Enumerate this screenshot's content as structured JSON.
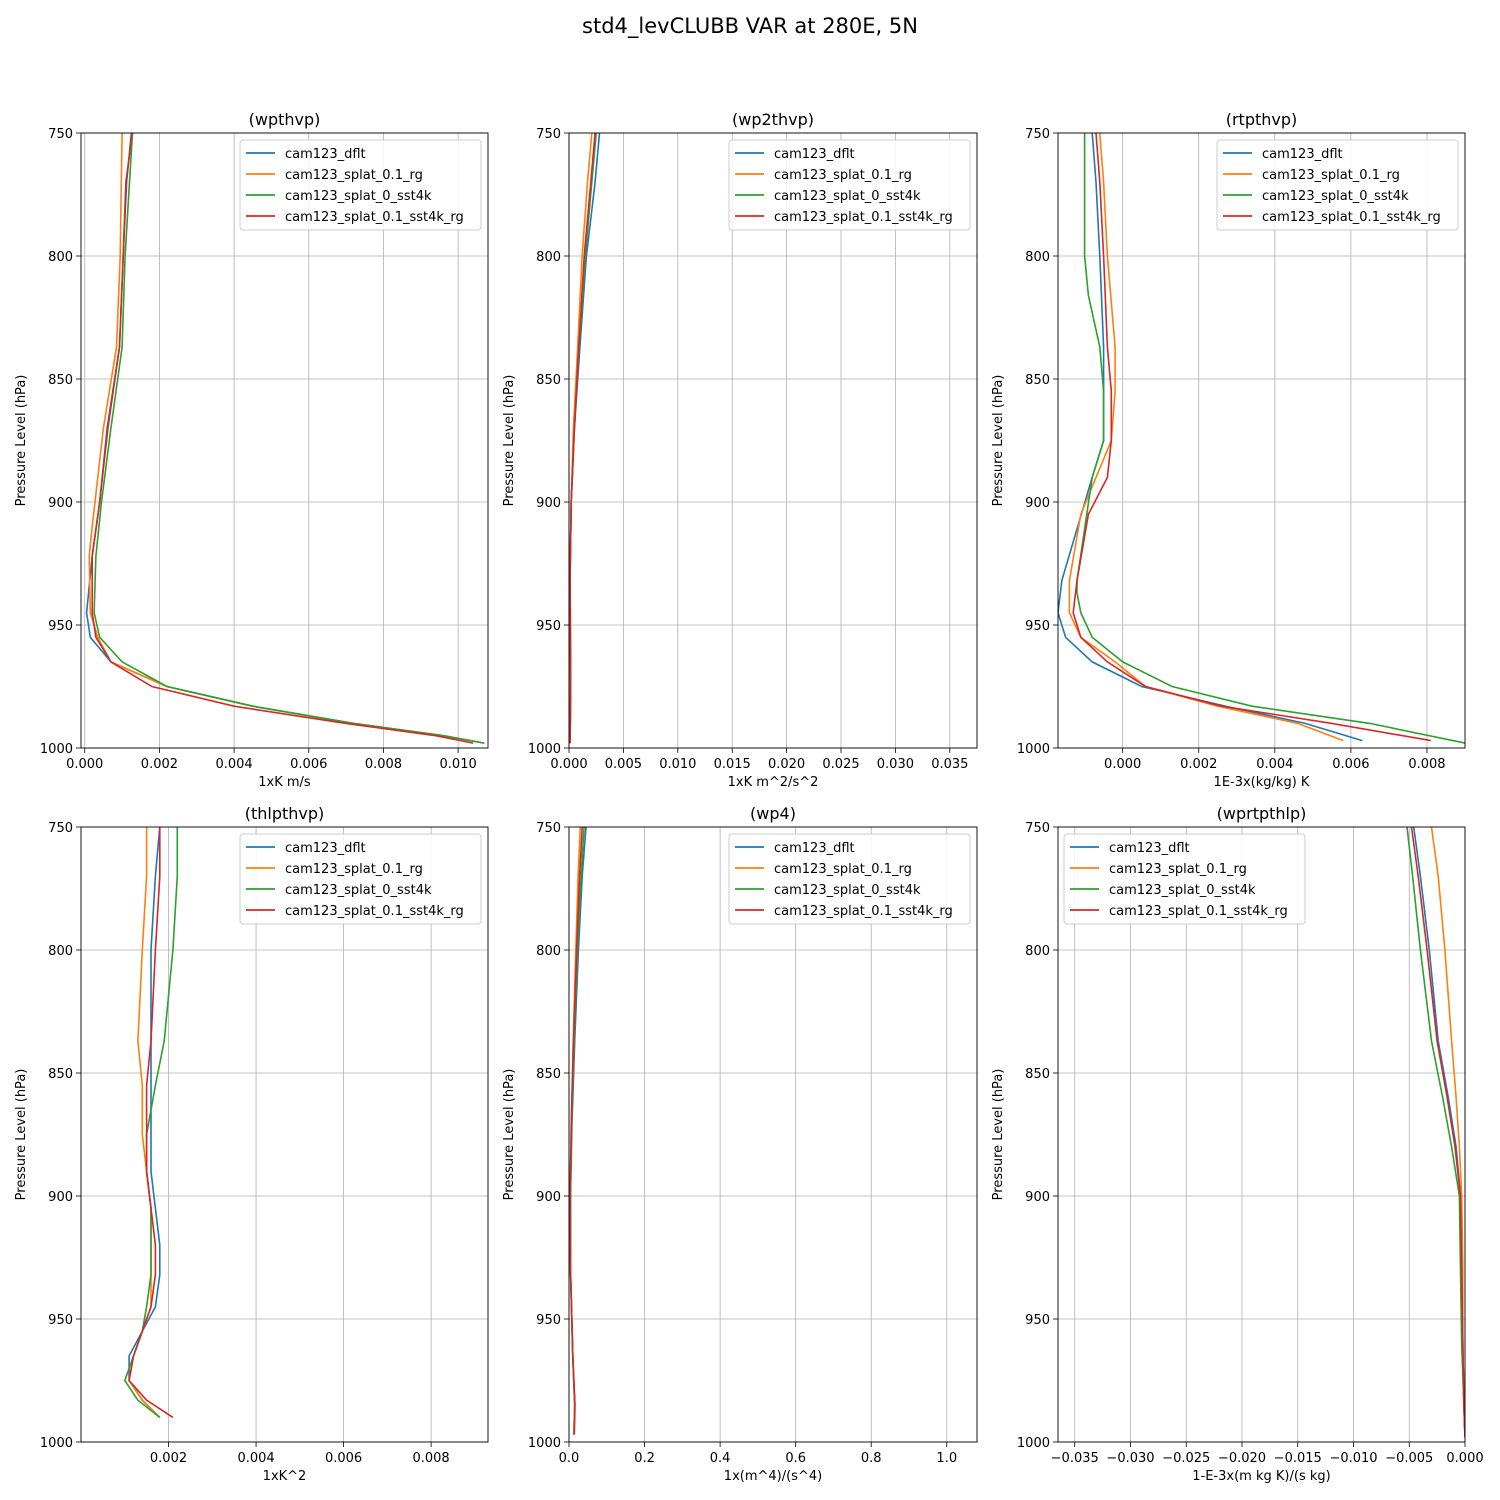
{
  "suptitle": "std4_levCLUBB VAR at 280E, 5N",
  "colors": [
    "#1f77b4",
    "#ff7f0e",
    "#2ca02c",
    "#d62728"
  ],
  "legend_location": "upper right",
  "chart_data": [
    {
      "type": "line",
      "title": "(wpthvp)",
      "xlabel": "1xK m/s",
      "ylabel": "Pressure Level (hPa)",
      "xlim": [
        -0.0001,
        0.0108
      ],
      "ylim": [
        1000,
        750
      ],
      "xticks": [
        "0.000",
        "0.002",
        "0.004",
        "0.006",
        "0.008",
        "0.010"
      ],
      "yticks": [
        "750",
        "800",
        "850",
        "900",
        "950",
        "1000"
      ],
      "grid": true,
      "legend_position": "top-right",
      "series": [
        {
          "name": "cam123_dflt",
          "x": [
            0.00128,
            0.0011,
            0.00103,
            0.00093,
            0.0006,
            0.0004,
            0.0002,
            5e-05,
            0.00015,
            0.0007,
            0.0022,
            0.0045,
            0.0072,
            0.0096,
            0.0107
          ],
          "y": [
            750,
            770,
            800,
            837,
            870,
            900,
            922,
            945,
            955,
            965,
            975,
            983,
            990,
            995,
            998
          ]
        },
        {
          "name": "cam123_splat_0.1_rg",
          "x": [
            0.001,
            0.00098,
            0.00095,
            0.00085,
            0.0005,
            0.0002,
            0.00012,
            0.00015,
            0.00035,
            0.0007,
            0.0022,
            0.0045,
            0.0072,
            0.0096,
            0.0107
          ],
          "y": [
            750,
            770,
            800,
            837,
            870,
            910,
            922,
            945,
            955,
            965,
            975,
            983,
            990,
            995,
            998
          ]
        },
        {
          "name": "cam123_splat_0_sst4k",
          "x": [
            0.00128,
            0.0012,
            0.00108,
            0.001,
            0.0007,
            0.00045,
            0.0003,
            0.00025,
            0.0004,
            0.001,
            0.0022,
            0.0045,
            0.0072,
            0.0096,
            0.0107
          ],
          "y": [
            750,
            770,
            800,
            837,
            870,
            900,
            922,
            945,
            955,
            965,
            975,
            983,
            990,
            995,
            998
          ]
        },
        {
          "name": "cam123_splat_0.1_sst4k_rg",
          "x": [
            0.00125,
            0.00112,
            0.00103,
            0.00093,
            0.00062,
            0.0004,
            0.0002,
            0.0002,
            0.0003,
            0.0007,
            0.0018,
            0.004,
            0.007,
            0.0094,
            0.0104
          ],
          "y": [
            750,
            770,
            800,
            837,
            870,
            900,
            922,
            945,
            955,
            965,
            975,
            983,
            990,
            995,
            998
          ]
        }
      ]
    },
    {
      "type": "line",
      "title": "(wp2thvp)",
      "xlabel": "1xK m^2/s^2",
      "ylabel": "Pressure Level (hPa)",
      "xlim": [
        0,
        0.0375
      ],
      "ylim": [
        1000,
        750
      ],
      "xticks": [
        "0.000",
        "0.005",
        "0.010",
        "0.015",
        "0.020",
        "0.025",
        "0.030",
        "0.035"
      ],
      "yticks": [
        "750",
        "800",
        "850",
        "900",
        "950",
        "1000"
      ],
      "grid": true,
      "legend_position": "top-right",
      "series": [
        {
          "name": "cam123_dflt",
          "x": [
            0.0028,
            0.0024,
            0.0016,
            0.001,
            0.0005,
            0.0002,
            0.0001,
            0.00015,
            0.0001
          ],
          "y": [
            750,
            770,
            800,
            837,
            870,
            900,
            930,
            975,
            998
          ]
        },
        {
          "name": "cam123_splat_0.1_rg",
          "x": [
            0.0021,
            0.0017,
            0.0012,
            0.0008,
            0.0004,
            0.0002,
            0.0001,
            0.00015,
            0.0001
          ],
          "y": [
            750,
            770,
            800,
            837,
            870,
            900,
            930,
            975,
            998
          ]
        },
        {
          "name": "cam123_splat_0_sst4k",
          "x": [
            0.0025,
            0.0021,
            0.0015,
            0.0009,
            0.0005,
            0.0002,
            0.0001,
            0.00015,
            0.0001
          ],
          "y": [
            750,
            770,
            800,
            837,
            870,
            900,
            930,
            975,
            998
          ]
        },
        {
          "name": "cam123_splat_0.1_sst4k_rg",
          "x": [
            0.0024,
            0.002,
            0.0014,
            0.0009,
            0.0005,
            0.0002,
            0.0001,
            0.00015,
            0.0001
          ],
          "y": [
            750,
            770,
            800,
            837,
            870,
            900,
            930,
            975,
            998
          ]
        }
      ]
    },
    {
      "type": "line",
      "title": "(rtpthvp)",
      "xlabel": "1E-3x(kg/kg) K",
      "ylabel": "Pressure Level (hPa)",
      "xlim": [
        -0.0017,
        0.009
      ],
      "ylim": [
        1000,
        750
      ],
      "xticks": [
        "0.000",
        "0.002",
        "0.004",
        "0.006",
        "0.008"
      ],
      "yticks": [
        "750",
        "800",
        "850",
        "900",
        "950",
        "1000"
      ],
      "grid": true,
      "legend_position": "top-right",
      "series": [
        {
          "name": "cam123_dflt",
          "x": [
            -0.0008,
            -0.0007,
            -0.0006,
            -0.0005,
            -0.0005,
            -0.0005,
            -0.0008,
            -0.0016,
            -0.0017,
            -0.0015,
            -0.0008,
            0.0005,
            0.0027,
            0.0048,
            0.0063
          ],
          "y": [
            750,
            770,
            800,
            837,
            855,
            875,
            890,
            932,
            945,
            955,
            965,
            975,
            983,
            990,
            997
          ]
        },
        {
          "name": "cam123_splat_0.1_rg",
          "x": [
            -0.0006,
            -0.0005,
            -0.0004,
            -0.0002,
            -0.0002,
            -0.0003,
            -0.0007,
            -0.0011,
            -0.0014,
            -0.0014,
            -0.0011,
            -0.0002,
            0.0006,
            0.0025,
            0.0046,
            0.0058
          ],
          "y": [
            750,
            770,
            800,
            837,
            855,
            875,
            890,
            905,
            932,
            945,
            955,
            965,
            975,
            983,
            990,
            997
          ]
        },
        {
          "name": "cam123_splat_0_sst4k",
          "x": [
            -0.001,
            -0.001,
            -0.001,
            -0.0009,
            -0.0006,
            -0.0005,
            -0.0005,
            -0.0008,
            -0.0012,
            -0.0012,
            -0.0011,
            -0.0008,
            0.0,
            0.0013,
            0.0034,
            0.0065,
            0.009
          ],
          "y": [
            750,
            770,
            800,
            816,
            837,
            855,
            875,
            890,
            932,
            937,
            945,
            955,
            965,
            975,
            983,
            990,
            998
          ]
        },
        {
          "name": "cam123_splat_0.1_sst4k_rg",
          "x": [
            -0.0007,
            -0.0006,
            -0.0005,
            -0.0004,
            -0.0003,
            -0.0003,
            -0.0004,
            -0.0009,
            -0.0012,
            -0.0013,
            -0.0011,
            -0.0004,
            0.0006,
            0.0026,
            0.0055,
            0.0081
          ],
          "y": [
            750,
            770,
            800,
            837,
            855,
            875,
            890,
            905,
            932,
            945,
            955,
            965,
            975,
            983,
            990,
            997
          ]
        }
      ]
    },
    {
      "type": "line",
      "title": "(thlpthvp)",
      "xlabel": "1xK^2",
      "ylabel": "Pressure Level (hPa)",
      "xlim": [
        0,
        0.0093
      ],
      "ylim": [
        1000,
        750
      ],
      "xticks": [
        "0.002",
        "0.004",
        "0.006",
        "0.008"
      ],
      "yticks": [
        "750",
        "800",
        "850",
        "900",
        "950",
        "1000"
      ],
      "grid": true,
      "legend_position": "top-right",
      "series": [
        {
          "name": "cam123_dflt",
          "x": [
            0.0018,
            0.0017,
            0.0016,
            0.0016,
            0.0016,
            0.0016,
            0.0016,
            0.0017,
            0.0018,
            0.0018,
            0.0017,
            0.0014,
            0.0011,
            0.0011,
            0.0014,
            0.0018
          ],
          "y": [
            750,
            770,
            800,
            837,
            855,
            875,
            890,
            905,
            920,
            932,
            945,
            955,
            965,
            975,
            983,
            990
          ]
        },
        {
          "name": "cam123_splat_0.1_rg",
          "x": [
            0.0015,
            0.0015,
            0.0014,
            0.0013,
            0.0014,
            0.0014,
            0.0015,
            0.0016,
            0.0016,
            0.0016,
            0.0016,
            0.0014,
            0.0012,
            0.0011,
            0.0014,
            0.0018
          ],
          "y": [
            750,
            770,
            800,
            837,
            855,
            875,
            890,
            905,
            920,
            932,
            945,
            955,
            965,
            975,
            983,
            990
          ]
        },
        {
          "name": "cam123_splat_0_sst4k",
          "x": [
            0.0022,
            0.0022,
            0.0021,
            0.0019,
            0.0017,
            0.0015,
            0.0015,
            0.0016,
            0.0016,
            0.0016,
            0.0015,
            0.0014,
            0.0012,
            0.001,
            0.0013,
            0.0018
          ],
          "y": [
            750,
            770,
            800,
            837,
            855,
            875,
            890,
            905,
            920,
            932,
            945,
            955,
            965,
            975,
            983,
            990
          ]
        },
        {
          "name": "cam123_splat_0.1_sst4k_rg",
          "x": [
            0.0018,
            0.0018,
            0.0017,
            0.0016,
            0.0015,
            0.0015,
            0.0015,
            0.0016,
            0.0017,
            0.0017,
            0.0016,
            0.0014,
            0.0012,
            0.0011,
            0.0015,
            0.0021
          ],
          "y": [
            750,
            770,
            800,
            837,
            855,
            875,
            890,
            905,
            920,
            932,
            945,
            955,
            965,
            975,
            983,
            990
          ]
        }
      ]
    },
    {
      "type": "line",
      "title": "(wp4)",
      "xlabel": "1x(m^4)/(s^4)",
      "ylabel": "Pressure Level (hPa)",
      "xlim": [
        0,
        1.08
      ],
      "ylim": [
        1000,
        750
      ],
      "xticks": [
        "0.0",
        "0.2",
        "0.4",
        "0.6",
        "0.8",
        "1.0"
      ],
      "yticks": [
        "750",
        "800",
        "850",
        "900",
        "950",
        "1000"
      ],
      "grid": true,
      "legend_position": "top-right",
      "series": [
        {
          "name": "cam123_dflt",
          "x": [
            0.045,
            0.035,
            0.025,
            0.015,
            0.008,
            0.004,
            0.004,
            0.01,
            0.015,
            0.013
          ],
          "y": [
            750,
            770,
            800,
            837,
            870,
            900,
            930,
            965,
            985,
            997
          ]
        },
        {
          "name": "cam123_splat_0.1_rg",
          "x": [
            0.03,
            0.024,
            0.018,
            0.011,
            0.006,
            0.003,
            0.004,
            0.01,
            0.015,
            0.013
          ],
          "y": [
            750,
            770,
            800,
            837,
            870,
            900,
            930,
            965,
            985,
            997
          ]
        },
        {
          "name": "cam123_splat_0_sst4k",
          "x": [
            0.04,
            0.032,
            0.022,
            0.013,
            0.007,
            0.004,
            0.004,
            0.01,
            0.015,
            0.013
          ],
          "y": [
            750,
            770,
            800,
            837,
            870,
            900,
            930,
            965,
            985,
            997
          ]
        },
        {
          "name": "cam123_splat_0.1_sst4k_rg",
          "x": [
            0.035,
            0.028,
            0.02,
            0.012,
            0.006,
            0.003,
            0.004,
            0.01,
            0.016,
            0.014
          ],
          "y": [
            750,
            770,
            800,
            837,
            870,
            900,
            930,
            965,
            985,
            997
          ]
        }
      ]
    },
    {
      "type": "line",
      "title": "(wprtpthlp)",
      "xlabel": "1-E-3x(m kg K)/(s kg)",
      "ylabel": "Pressure Level (hPa)",
      "xlim": [
        -0.0365,
        0.0
      ],
      "ylim": [
        1000,
        750
      ],
      "xticks": [
        "−0.035",
        "−0.030",
        "−0.025",
        "−0.020",
        "−0.015",
        "−0.010",
        "−0.005",
        "0.000"
      ],
      "yticks": [
        "750",
        "800",
        "850",
        "900",
        "950",
        "1000"
      ],
      "grid": true,
      "legend_position": "top-left",
      "series": [
        {
          "name": "cam123_dflt",
          "x": [
            -0.0046,
            -0.004,
            -0.0032,
            -0.0024,
            -0.0015,
            -0.0008,
            -0.0004,
            -0.0003,
            -0.0002,
            -0.0001,
            0.0
          ],
          "y": [
            750,
            770,
            800,
            837,
            860,
            880,
            900,
            930,
            960,
            985,
            998
          ]
        },
        {
          "name": "cam123_splat_0.1_rg",
          "x": [
            -0.003,
            -0.0024,
            -0.0018,
            -0.0012,
            -0.0008,
            -0.0005,
            -0.0003,
            -0.0002,
            -0.0002,
            -0.0001,
            0.0
          ],
          "y": [
            750,
            770,
            800,
            837,
            860,
            880,
            900,
            930,
            960,
            985,
            998
          ]
        },
        {
          "name": "cam123_splat_0_sst4k",
          "x": [
            -0.0052,
            -0.0047,
            -0.004,
            -0.003,
            -0.002,
            -0.0012,
            -0.0005,
            -0.0004,
            -0.0003,
            -0.0001,
            0.0
          ],
          "y": [
            750,
            770,
            800,
            837,
            860,
            880,
            900,
            930,
            960,
            985,
            998
          ]
        },
        {
          "name": "cam123_splat_0.1_sst4k_rg",
          "x": [
            -0.0048,
            -0.0042,
            -0.0034,
            -0.0025,
            -0.0016,
            -0.0009,
            -0.0004,
            -0.0003,
            -0.0002,
            -0.0001,
            0.0
          ],
          "y": [
            750,
            770,
            800,
            837,
            860,
            880,
            900,
            930,
            960,
            985,
            998
          ]
        }
      ]
    }
  ]
}
